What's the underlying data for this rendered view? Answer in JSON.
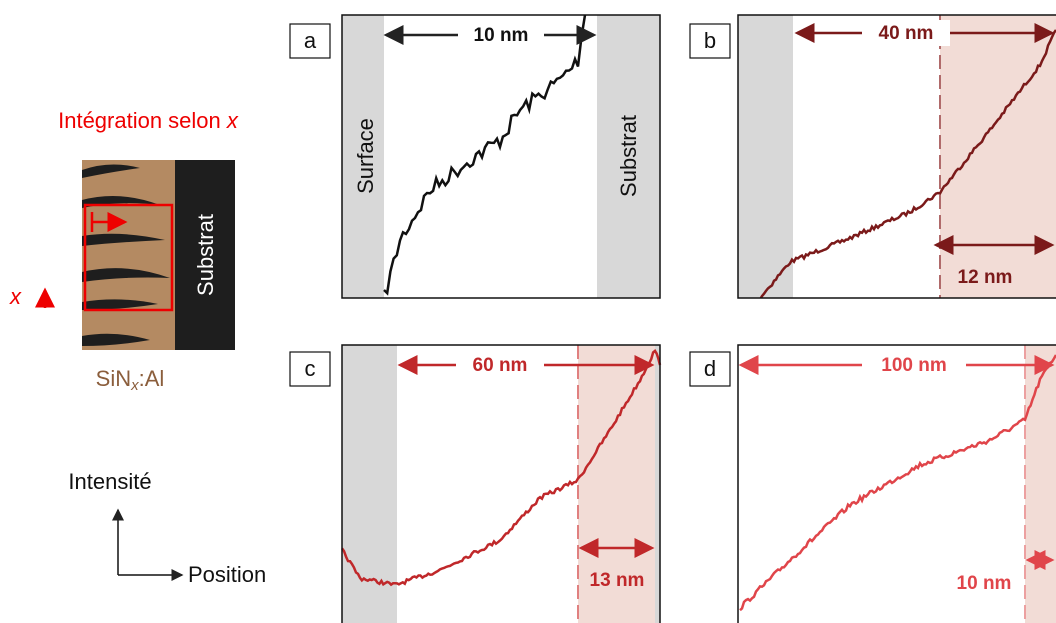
{
  "schematic": {
    "title": {
      "text": "Intégration selon ",
      "variable": "x"
    },
    "substrate": "Substrat",
    "axis_label": "x",
    "material": {
      "prefix": "SiN",
      "subscript": "x",
      "suffix": ":Al"
    },
    "y_axis": "Intensité",
    "x_axis": "Position"
  },
  "panels": [
    {
      "label": "a",
      "surface": "Surface",
      "substrate": "Substrat",
      "width": "10 nm"
    },
    {
      "label": "b",
      "width": "40 nm",
      "interface": "12 nm"
    },
    {
      "label": "c",
      "width": "60 nm",
      "interface": "13 nm"
    },
    {
      "label": "d",
      "width": "100 nm",
      "interface": "10 nm"
    }
  ]
}
